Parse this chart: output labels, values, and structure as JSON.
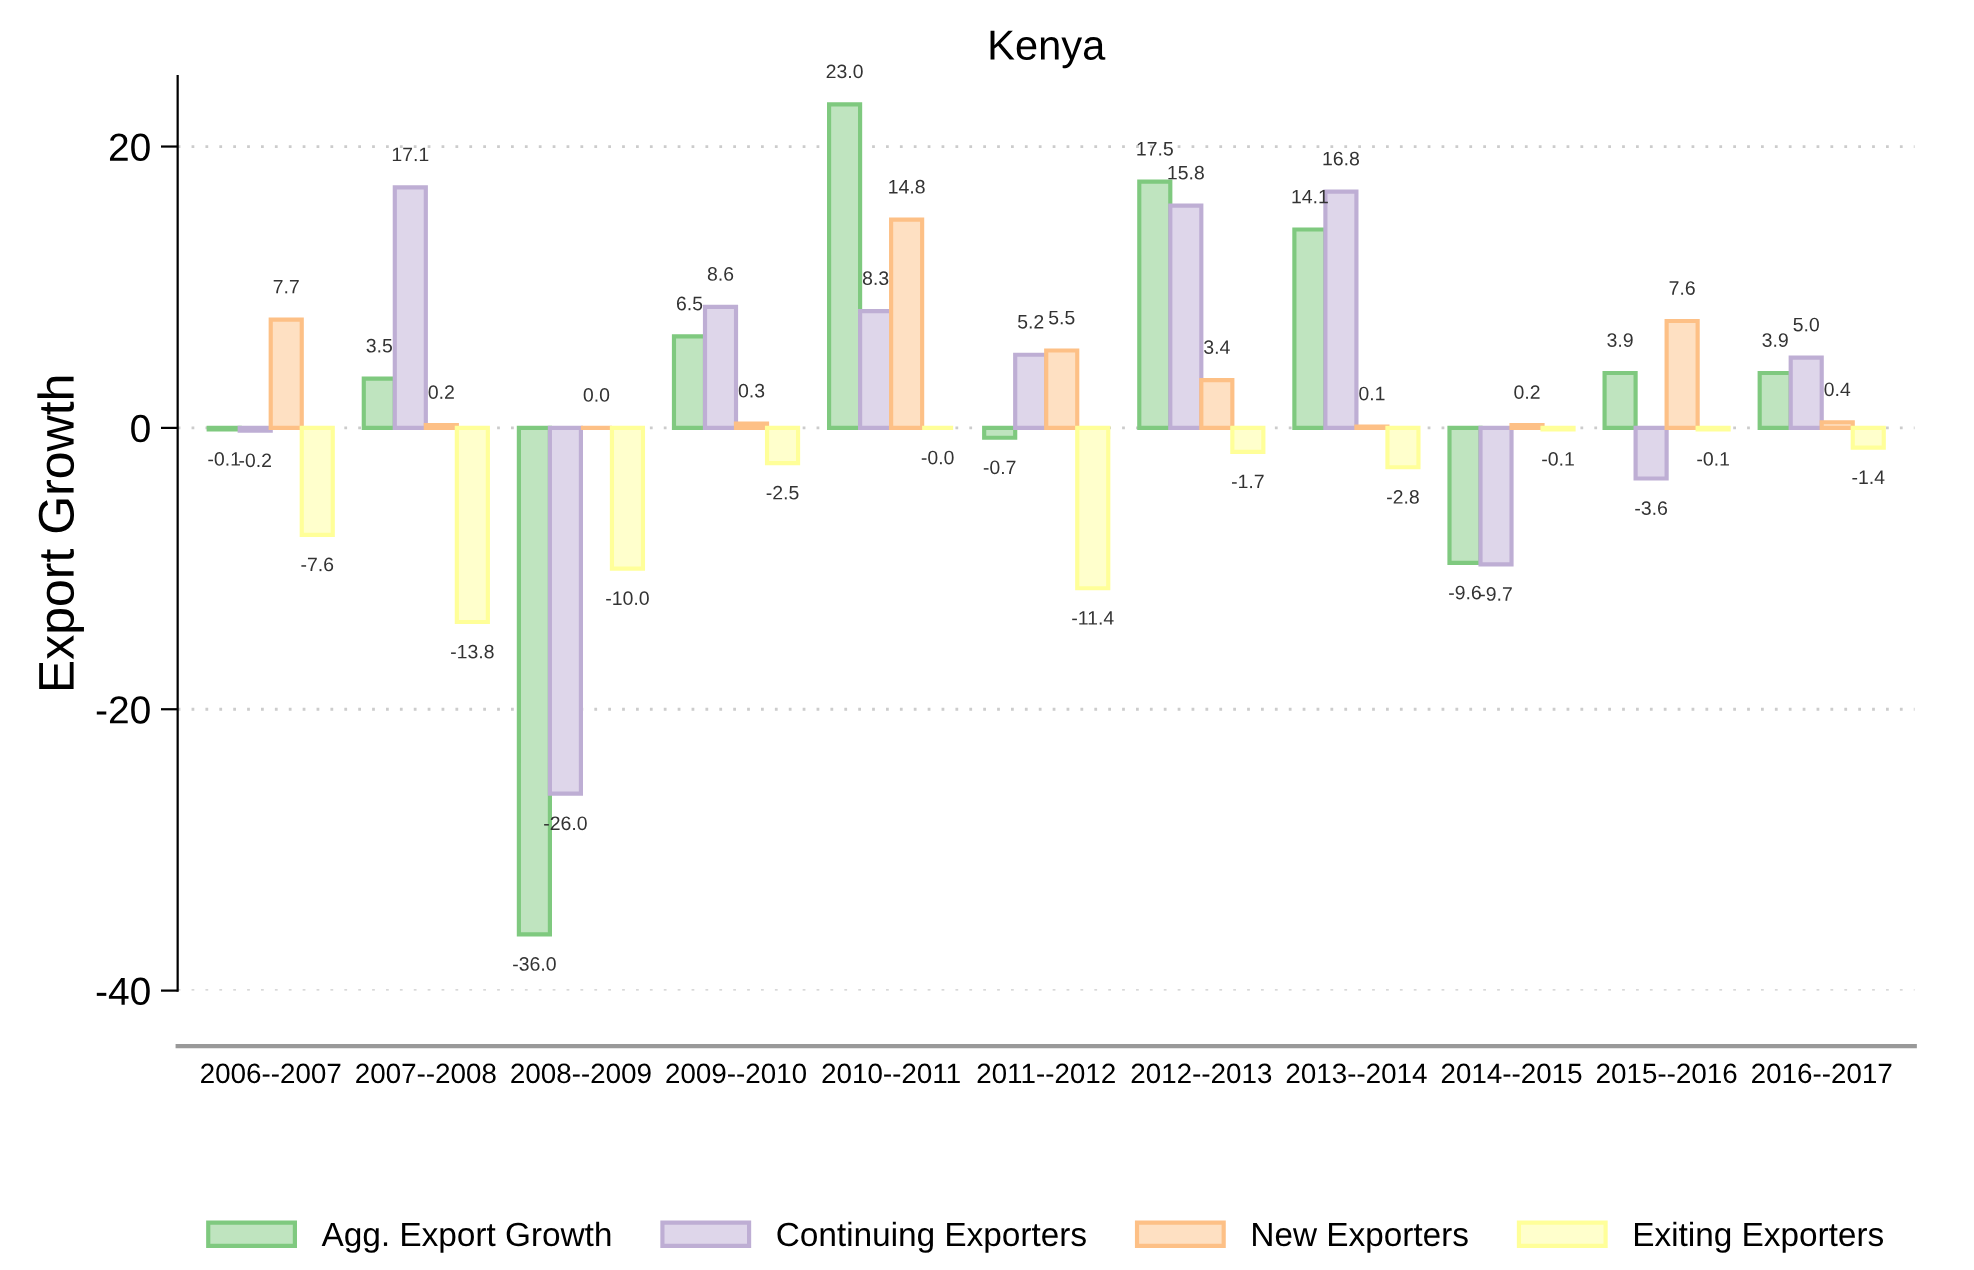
{
  "chart_data": {
    "type": "bar",
    "title": "Kenya",
    "ylabel": "Export Growth",
    "categories": [
      "2006--2007",
      "2007--2008",
      "2008--2009",
      "2009--2010",
      "2010--2011",
      "2011--2012",
      "2012--2013",
      "2013--2014",
      "2014--2015",
      "2015--2016",
      "2016--2017"
    ],
    "series": [
      {
        "name": "Agg. Export Growth",
        "color": "#7fc97f",
        "values": [
          -0.1,
          3.5,
          -36.0,
          6.5,
          23.0,
          -0.7,
          17.5,
          14.1,
          -9.6,
          3.9,
          3.9
        ],
        "value_labels": [
          "-0.1",
          "3.5",
          "-36.0",
          "6.5",
          "23.0",
          "-0.7",
          "17.5",
          "14.1",
          "-9.6",
          "3.9",
          "3.9"
        ]
      },
      {
        "name": "Continuing Exporters",
        "color": "#beaed4",
        "values": [
          -0.2,
          17.1,
          -26.0,
          8.6,
          8.3,
          5.2,
          15.8,
          16.8,
          -9.7,
          -3.6,
          5.0
        ],
        "value_labels": [
          "-0.2",
          "17.1",
          "-26.0",
          "8.6",
          "8.3",
          "5.2",
          "15.8",
          "16.8",
          "-9.7",
          "-3.6",
          "5.0"
        ]
      },
      {
        "name": "New Exporters",
        "color": "#fdc086",
        "values": [
          7.7,
          0.2,
          0.0,
          0.3,
          14.8,
          5.5,
          3.4,
          0.1,
          0.2,
          7.6,
          0.4
        ],
        "value_labels": [
          "7.7",
          "0.2",
          "0.0",
          "0.3",
          "14.8",
          "5.5",
          "3.4",
          "0.1",
          "0.2",
          "7.6",
          "0.4"
        ]
      },
      {
        "name": "Exiting Exporters",
        "color": "#ffff99",
        "values": [
          -7.6,
          -13.8,
          -10.0,
          -2.5,
          -0.0,
          -11.4,
          -1.7,
          -2.8,
          -0.1,
          -0.1,
          -1.4
        ],
        "value_labels": [
          "-7.6",
          "-13.8",
          "-10.0",
          "-2.5",
          "-0.0",
          "-11.4",
          "-1.7",
          "-2.8",
          "-0.1",
          "-0.1",
          "-1.4"
        ]
      }
    ],
    "ylim": [
      -40,
      25
    ],
    "yticks": [
      -40,
      -20,
      0,
      20
    ],
    "grid": "y",
    "legend": "bottom"
  }
}
